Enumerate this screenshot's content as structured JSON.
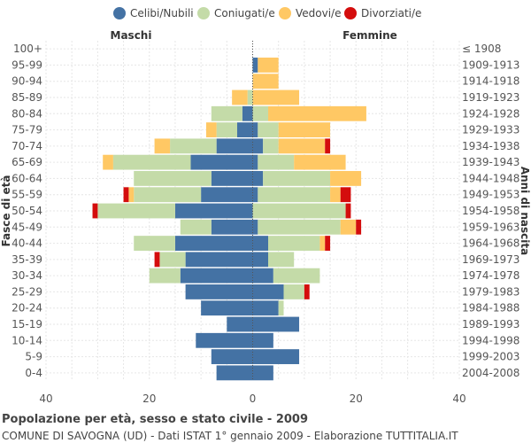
{
  "chart_data": {
    "type": "bar",
    "orientation": "horizontal-population-pyramid",
    "title": "Popolazione per età, sesso e stato civile - 2009",
    "subtitle": "COMUNE DI SAVOGNA (UD) - Dati ISTAT 1° gennaio 2009 - Elaborazione TUTTITALIA.IT",
    "left_header": "Maschi",
    "right_header": "Femmine",
    "ylabel_left": "Fasce di età",
    "ylabel_right": "Anni di nascita",
    "xlim": [
      -40,
      40
    ],
    "x_ticks": [
      -40,
      -20,
      0,
      20,
      40
    ],
    "x_tick_labels": [
      "40",
      "20",
      "0",
      "20",
      "40"
    ],
    "grid": true,
    "legend_position": "top",
    "legend": [
      {
        "key": "celibi",
        "label": "Celibi/Nubili",
        "color": "#4472a4"
      },
      {
        "key": "coniugati",
        "label": "Coniugati/e",
        "color": "#c4dba8"
      },
      {
        "key": "vedovi",
        "label": "Vedovi/e",
        "color": "#ffc864"
      },
      {
        "key": "divorziati",
        "label": "Divorziati/e",
        "color": "#d40d0d"
      }
    ],
    "age_groups": [
      "100+",
      "95-99",
      "90-94",
      "85-89",
      "80-84",
      "75-79",
      "70-74",
      "65-69",
      "60-64",
      "55-59",
      "50-54",
      "45-49",
      "40-44",
      "35-39",
      "30-34",
      "25-29",
      "20-24",
      "15-19",
      "10-14",
      "5-9",
      "0-4"
    ],
    "birth_years": [
      "≤ 1908",
      "1909-1913",
      "1914-1918",
      "1919-1923",
      "1924-1928",
      "1929-1933",
      "1934-1938",
      "1939-1943",
      "1944-1948",
      "1949-1953",
      "1954-1958",
      "1959-1963",
      "1964-1968",
      "1969-1973",
      "1974-1978",
      "1979-1983",
      "1984-1988",
      "1989-1993",
      "1994-1998",
      "1999-2003",
      "2004-2008"
    ],
    "males": {
      "celibi": [
        0,
        0,
        0,
        0,
        2,
        3,
        7,
        12,
        8,
        10,
        15,
        8,
        15,
        13,
        14,
        13,
        10,
        5,
        11,
        8,
        7
      ],
      "coniugati": [
        0,
        0,
        0,
        1,
        6,
        4,
        9,
        15,
        15,
        13,
        15,
        6,
        8,
        5,
        6,
        0,
        0,
        0,
        0,
        0,
        0
      ],
      "vedovi": [
        0,
        0,
        0,
        3,
        0,
        2,
        3,
        2,
        0,
        1,
        0,
        0,
        0,
        0,
        0,
        0,
        0,
        0,
        0,
        0,
        0
      ],
      "divorziati": [
        0,
        0,
        0,
        0,
        0,
        0,
        0,
        0,
        0,
        1,
        1,
        0,
        0,
        1,
        0,
        0,
        0,
        0,
        0,
        0,
        0
      ]
    },
    "females": {
      "nubili": [
        0,
        1,
        0,
        0,
        0,
        1,
        2,
        1,
        2,
        1,
        0,
        1,
        3,
        3,
        4,
        6,
        5,
        9,
        4,
        9,
        4
      ],
      "coniugate": [
        0,
        0,
        0,
        0,
        3,
        4,
        3,
        7,
        13,
        14,
        18,
        16,
        10,
        5,
        9,
        4,
        1,
        0,
        0,
        0,
        0
      ],
      "vedove": [
        0,
        4,
        5,
        9,
        19,
        10,
        9,
        10,
        6,
        2,
        0,
        3,
        1,
        0,
        0,
        0,
        0,
        0,
        0,
        0,
        0
      ],
      "divorziate": [
        0,
        0,
        0,
        0,
        0,
        0,
        1,
        0,
        0,
        2,
        1,
        1,
        1,
        0,
        0,
        1,
        0,
        0,
        0,
        0,
        0
      ]
    }
  }
}
